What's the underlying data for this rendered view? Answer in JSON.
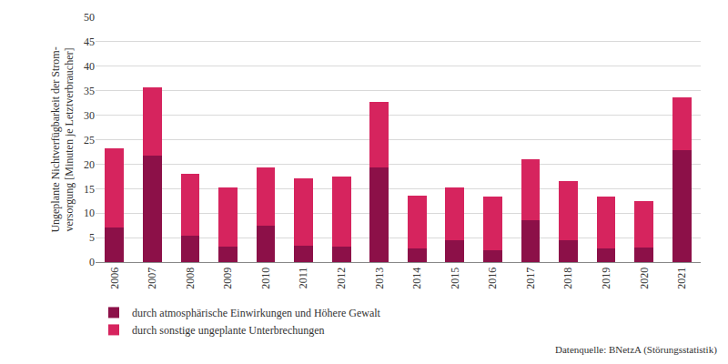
{
  "chart_data": {
    "type": "bar",
    "stacked": true,
    "ylabel": "Ungeplante Nichtverfügbarkeit der Strom-\nversorgung [Minuten je Letztverbraucher]",
    "categories": [
      "2006",
      "2007",
      "2008",
      "2009",
      "2010",
      "2011",
      "2012",
      "2013",
      "2014",
      "2015",
      "2016",
      "2017",
      "2018",
      "2019",
      "2020",
      "2021"
    ],
    "series": [
      {
        "name": "durch atmosphärische Einwirkungen und Höhere Gewalt",
        "color": "#8c1048",
        "values": [
          7.0,
          21.8,
          5.3,
          3.2,
          7.5,
          3.3,
          3.2,
          19.4,
          2.7,
          4.5,
          2.4,
          8.5,
          4.5,
          2.7,
          2.9,
          22.8
        ]
      },
      {
        "name": "durch sonstige ungeplante Unterbrechungen",
        "color": "#d6245e",
        "values": [
          16.3,
          13.9,
          12.8,
          12.1,
          11.8,
          13.8,
          14.2,
          13.4,
          10.8,
          10.7,
          10.9,
          12.5,
          12.1,
          10.7,
          9.6,
          10.9
        ]
      }
    ],
    "ylim": [
      0,
      50
    ],
    "yticks": [
      0,
      5,
      10,
      15,
      20,
      25,
      30,
      35,
      40,
      45,
      50
    ],
    "grid": true,
    "legend": "bottom left",
    "annotations": [
      "Datenquelle: BNetzA (Störungsstatistik)"
    ]
  }
}
